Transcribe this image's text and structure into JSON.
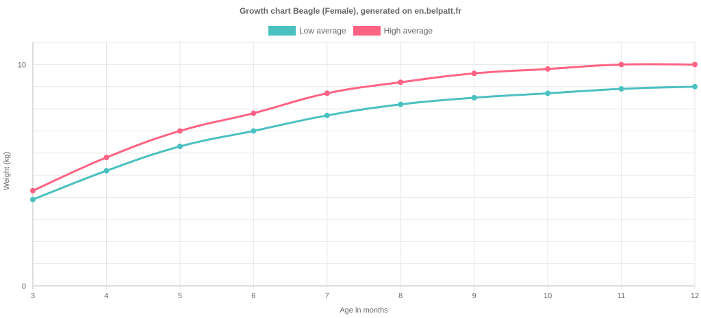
{
  "chart_data": {
    "type": "line",
    "title": "Growth chart Beagle (Female), generated on en.belpatt.fr",
    "xlabel": "Age in months",
    "ylabel": "Weight (kg)",
    "categories": [
      "3",
      "4",
      "5",
      "6",
      "7",
      "8",
      "9",
      "10",
      "11",
      "12"
    ],
    "ylim": [
      0,
      11
    ],
    "yticks": [
      "0",
      "10"
    ],
    "grid": true,
    "legend_position": "top-center",
    "series": [
      {
        "name": "Low average",
        "color": "#4bc0c0",
        "values": [
          3.9,
          5.2,
          6.3,
          7.0,
          7.7,
          8.2,
          8.5,
          8.7,
          8.9,
          9.0
        ]
      },
      {
        "name": "High average",
        "color": "#ff6384",
        "values": [
          4.3,
          5.8,
          7.0,
          7.8,
          8.7,
          9.2,
          9.6,
          9.8,
          10.0,
          10.0
        ]
      }
    ]
  }
}
